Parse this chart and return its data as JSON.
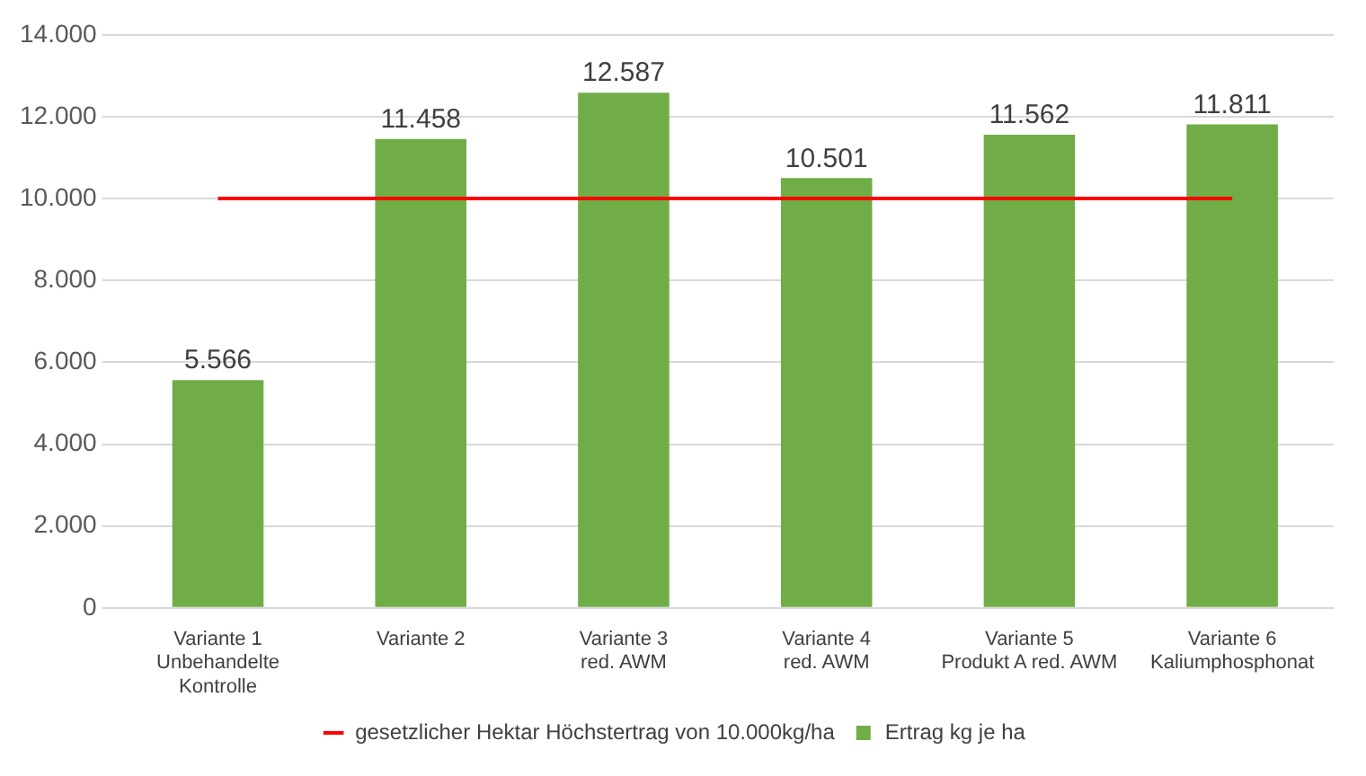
{
  "chart_data": {
    "type": "bar",
    "categories": [
      "Variante 1\nUnbehandelte\nKontrolle",
      "Variante 2",
      "Variante 3\nred. AWM",
      "Variante 4\nred. AWM",
      "Variante 5\nProdukt A red. AWM",
      "Variante 6\nKaliumphosphonat"
    ],
    "series": [
      {
        "name": "Ertrag kg je ha",
        "color": "#70ad47",
        "values": [
          5566,
          11458,
          12587,
          10501,
          11562,
          11811
        ]
      },
      {
        "name": "gesetzlicher Hektar Höchstertrag von 10.000kg/ha",
        "type": "line",
        "color": "#ff0000",
        "values": [
          10000,
          10000,
          10000,
          10000,
          10000,
          10000
        ],
        "marker": "none"
      }
    ],
    "ylim": [
      0,
      14000
    ],
    "yticks": [
      {
        "value": 0,
        "label": "0"
      },
      {
        "value": 2000,
        "label": "2.000"
      },
      {
        "value": 4000,
        "label": "4.000"
      },
      {
        "value": 6000,
        "label": "6.000"
      },
      {
        "value": 8000,
        "label": "8.000"
      },
      {
        "value": 10000,
        "label": "10.000"
      },
      {
        "value": 12000,
        "label": "12.000"
      },
      {
        "value": 14000,
        "label": "14.000"
      }
    ],
    "grid": "y",
    "legend": "bottom",
    "value_labels": [
      "5.566",
      "11.458",
      "12.587",
      "10.501",
      "11.562",
      "11.811"
    ]
  }
}
